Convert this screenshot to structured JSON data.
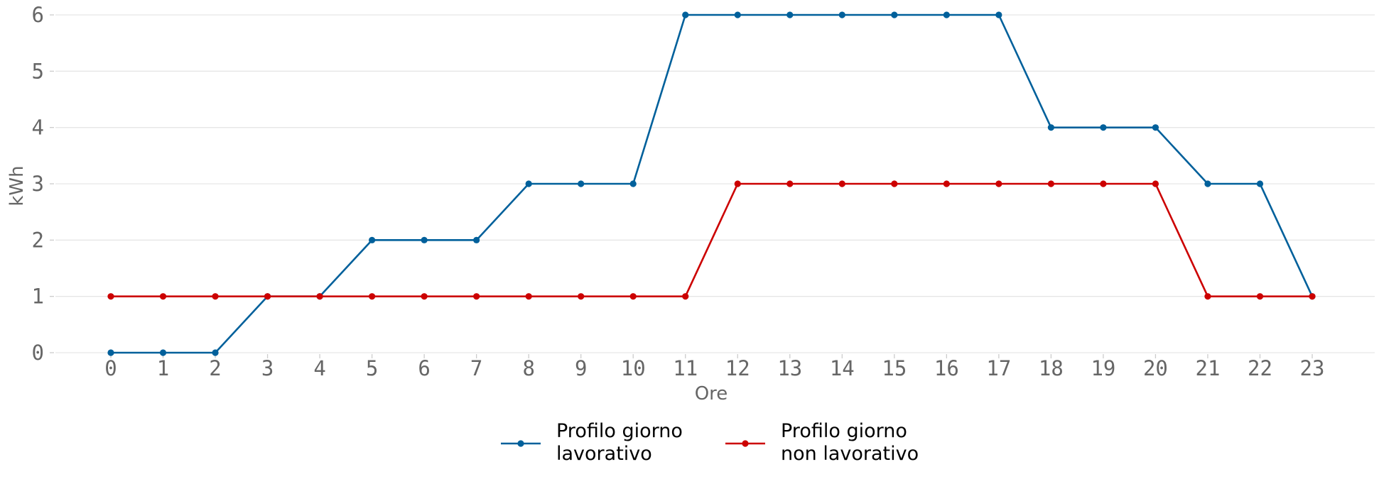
{
  "chart_data": {
    "type": "line",
    "xlabel": "Ore",
    "ylabel": "kWh",
    "categories": [
      "0",
      "1",
      "2",
      "3",
      "4",
      "5",
      "6",
      "7",
      "8",
      "9",
      "10",
      "11",
      "12",
      "13",
      "14",
      "15",
      "16",
      "17",
      "18",
      "19",
      "20",
      "21",
      "22",
      "23"
    ],
    "ylim": [
      0,
      6
    ],
    "yticks": [
      "0",
      "1",
      "2",
      "3",
      "4",
      "5",
      "6"
    ],
    "grid": "horizontal",
    "legend_position": "bottom-center",
    "series": [
      {
        "name": [
          "Profilo giorno",
          "lavorativo"
        ],
        "color": "#00609b",
        "values": [
          0,
          0,
          0,
          1,
          1,
          2,
          2,
          2,
          3,
          3,
          3,
          6,
          6,
          6,
          6,
          6,
          6,
          6,
          4,
          4,
          4,
          3,
          3,
          1
        ]
      },
      {
        "name": [
          "Profilo giorno",
          "non lavorativo"
        ],
        "color": "#cc0000",
        "values": [
          1,
          1,
          1,
          1,
          1,
          1,
          1,
          1,
          1,
          1,
          1,
          1,
          3,
          3,
          3,
          3,
          3,
          3,
          3,
          3,
          3,
          1,
          1,
          1
        ]
      }
    ]
  }
}
